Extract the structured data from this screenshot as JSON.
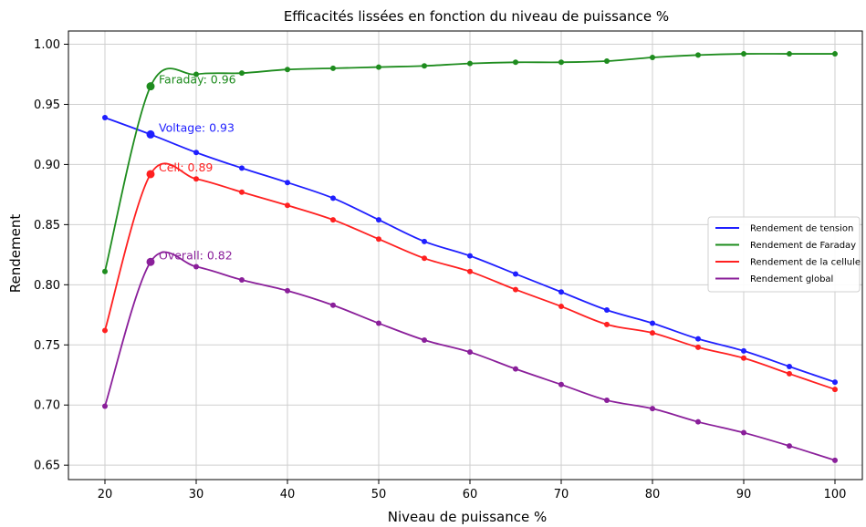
{
  "chart_data": {
    "type": "line",
    "title": "Efficacités lissées en fonction du niveau de puissance %",
    "xlabel": "Niveau de puissance %",
    "ylabel": "Rendement",
    "xlim": [
      16,
      103
    ],
    "ylim": [
      0.638,
      1.011
    ],
    "xticks": [
      20,
      30,
      40,
      50,
      60,
      70,
      80,
      90,
      100
    ],
    "xtick_labels": [
      "20",
      "30",
      "40",
      "50",
      "60",
      "70",
      "80",
      "90",
      "100"
    ],
    "yticks": [
      0.65,
      0.7,
      0.75,
      0.8,
      0.85,
      0.9,
      0.95,
      1.0
    ],
    "ytick_labels": [
      "0.65",
      "0.70",
      "0.75",
      "0.80",
      "0.85",
      "0.90",
      "0.95",
      "1.00"
    ],
    "grid": true,
    "legend_position": "right",
    "x": [
      20,
      25,
      30,
      35,
      40,
      45,
      50,
      55,
      60,
      65,
      70,
      75,
      80,
      85,
      90,
      95,
      100
    ],
    "series": [
      {
        "name": "Rendement de tension",
        "color": "#1f1fff",
        "values": [
          0.939,
          0.925,
          0.91,
          0.897,
          0.885,
          0.872,
          0.854,
          0.836,
          0.824,
          0.809,
          0.794,
          0.779,
          0.768,
          0.755,
          0.745,
          0.732,
          0.719
        ],
        "annotation": {
          "x": 25,
          "y": 0.925,
          "text": "Voltage: 0.93"
        }
      },
      {
        "name": "Rendement de Faraday",
        "color": "#1e8c1e",
        "values": [
          0.811,
          0.965,
          0.975,
          0.976,
          0.979,
          0.98,
          0.981,
          0.982,
          0.984,
          0.985,
          0.985,
          0.986,
          0.989,
          0.991,
          0.992,
          0.992,
          0.992
        ],
        "annotation": {
          "x": 25,
          "y": 0.965,
          "text": "Faraday: 0.96"
        }
      },
      {
        "name": "Rendement de la cellule",
        "color": "#ff2020",
        "values": [
          0.762,
          0.892,
          0.888,
          0.877,
          0.866,
          0.854,
          0.838,
          0.822,
          0.811,
          0.796,
          0.782,
          0.767,
          0.76,
          0.748,
          0.739,
          0.726,
          0.713
        ],
        "annotation": {
          "x": 25,
          "y": 0.892,
          "text": "Cell: 0.89"
        }
      },
      {
        "name": "Rendement global",
        "color": "#8a1f9a",
        "values": [
          0.699,
          0.819,
          0.815,
          0.804,
          0.795,
          0.783,
          0.768,
          0.754,
          0.744,
          0.73,
          0.717,
          0.704,
          0.697,
          0.686,
          0.677,
          0.666,
          0.654
        ],
        "annotation": {
          "x": 25,
          "y": 0.819,
          "text": "Overall: 0.82"
        }
      }
    ]
  }
}
